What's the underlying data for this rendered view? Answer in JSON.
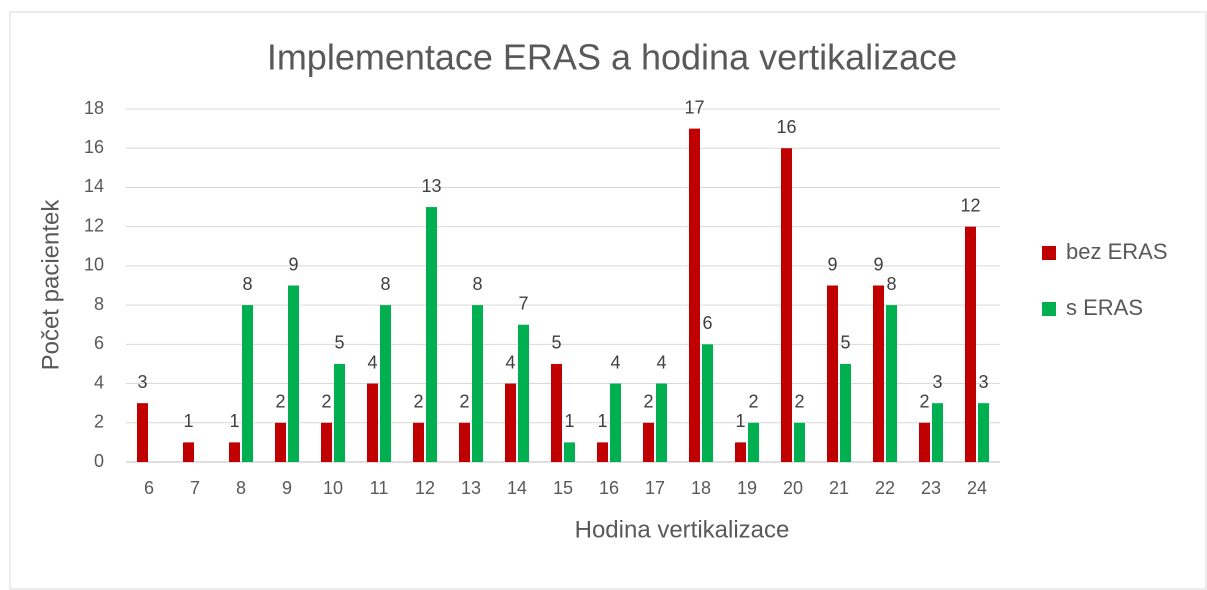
{
  "chart_data": {
    "type": "bar",
    "title": "Implementace ERAS a hodina vertikalizace",
    "xlabel": "Hodina vertikalizace",
    "ylabel": "Počet pacientek",
    "categories": [
      "6",
      "7",
      "8",
      "9",
      "10",
      "11",
      "12",
      "13",
      "14",
      "15",
      "16",
      "17",
      "18",
      "19",
      "20",
      "21",
      "22",
      "23",
      "24"
    ],
    "series": [
      {
        "name": "bez ERAS",
        "color": "#c00000",
        "values": [
          3,
          1,
          1,
          2,
          2,
          4,
          2,
          2,
          4,
          5,
          1,
          2,
          17,
          1,
          16,
          9,
          9,
          2,
          12
        ]
      },
      {
        "name": "s ERAS",
        "color": "#00b050",
        "values": [
          null,
          null,
          8,
          9,
          5,
          8,
          13,
          8,
          7,
          1,
          4,
          4,
          6,
          2,
          2,
          5,
          8,
          3,
          3
        ]
      }
    ],
    "ylim": [
      0,
      18
    ],
    "yticks": [
      0,
      2,
      4,
      6,
      8,
      10,
      12,
      14,
      16,
      18
    ],
    "grid": true,
    "legend": "right"
  }
}
